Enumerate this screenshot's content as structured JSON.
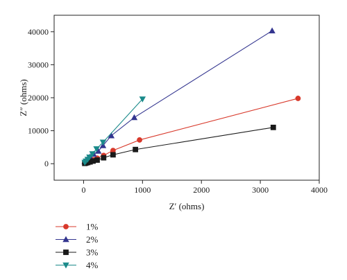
{
  "chart_data": {
    "type": "line",
    "title": "",
    "xlabel": "Z′ (ohms)",
    "ylabel": "Z″ (ohms)",
    "xlim": [
      -500,
      4000
    ],
    "ylim": [
      -5000,
      45000
    ],
    "xticks": [
      0,
      1000,
      2000,
      3000,
      4000
    ],
    "yticks": [
      0,
      10000,
      20000,
      30000,
      40000
    ],
    "grid": false,
    "legend_position": "bottom-left, below plot",
    "series": [
      {
        "name": "1%",
        "color": "#d8392b",
        "marker": "circle",
        "x": [
          20,
          40,
          70,
          110,
          160,
          230,
          340,
          500,
          950,
          3640
        ],
        "y": [
          150,
          300,
          500,
          800,
          1200,
          1700,
          2500,
          4000,
          7200,
          19800
        ]
      },
      {
        "name": "2%",
        "color": "#33358f",
        "marker": "triangle-up",
        "x": [
          20,
          40,
          70,
          110,
          170,
          250,
          330,
          470,
          860,
          3200
        ],
        "y": [
          600,
          1000,
          1500,
          2100,
          2900,
          3800,
          5500,
          8500,
          14000,
          40300
        ]
      },
      {
        "name": "3%",
        "color": "#1a1a1a",
        "marker": "square",
        "x": [
          20,
          40,
          70,
          110,
          160,
          230,
          340,
          500,
          880,
          3220
        ],
        "y": [
          100,
          200,
          350,
          550,
          800,
          1100,
          1800,
          2700,
          4300,
          11000
        ]
      },
      {
        "name": "4%",
        "color": "#1a8a8a",
        "marker": "triangle-down",
        "x": [
          20,
          40,
          70,
          100,
          150,
          220,
          330,
          1000
        ],
        "y": [
          400,
          800,
          1300,
          2000,
          3000,
          4500,
          6500,
          19600
        ]
      }
    ]
  }
}
